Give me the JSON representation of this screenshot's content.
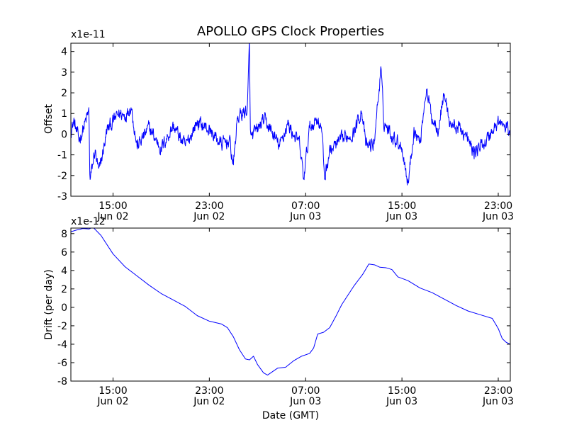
{
  "figure": {
    "title": "APOLLO GPS Clock Properties",
    "background": "#ffffff"
  },
  "chart_data": [
    {
      "type": "line",
      "title": "APOLLO GPS Clock Properties",
      "xlabel": "",
      "ylabel": "Offset",
      "y_scale_label": "x1e-11",
      "line_color": "#0000ff",
      "xlim": [
        "2014-06-02 11:30",
        "2014-06-04 00:00"
      ],
      "ylim": [
        -3,
        4.4
      ],
      "xticks": [
        {
          "time": "15:00",
          "date": "Jun 02"
        },
        {
          "time": "23:00",
          "date": "Jun 02"
        },
        {
          "time": "07:00",
          "date": "Jun 03"
        },
        {
          "time": "15:00",
          "date": "Jun 03"
        },
        {
          "time": "23:00",
          "date": "Jun 03"
        }
      ],
      "yticks": [
        "-3",
        "-2",
        "-1",
        "0",
        "1",
        "2",
        "3",
        "4"
      ],
      "grid": false,
      "series": [
        {
          "name": "",
          "noise_amplitude": 0.35,
          "points": [
            {
              "x": "2014-06-02 11:30",
              "y": 0.2
            },
            {
              "x": "2014-06-02 11:45",
              "y": 0.6
            },
            {
              "x": "2014-06-02 12:10",
              "y": -0.3
            },
            {
              "x": "2014-06-02 12:40",
              "y": 0.5
            },
            {
              "x": "2014-06-02 13:00",
              "y": 1.1
            },
            {
              "x": "2014-06-02 13:05",
              "y": -2.3
            },
            {
              "x": "2014-06-02 13:30",
              "y": -0.8
            },
            {
              "x": "2014-06-02 13:50",
              "y": -1.9
            },
            {
              "x": "2014-06-02 14:30",
              "y": 0.2
            },
            {
              "x": "2014-06-02 15:30",
              "y": 1.0
            },
            {
              "x": "2014-06-02 16:00",
              "y": 0.9
            },
            {
              "x": "2014-06-02 16:30",
              "y": 1.4
            },
            {
              "x": "2014-06-02 17:00",
              "y": -0.6
            },
            {
              "x": "2014-06-02 18:00",
              "y": 0.3
            },
            {
              "x": "2014-06-02 19:00",
              "y": -0.7
            },
            {
              "x": "2014-06-02 20:00",
              "y": 0.4
            },
            {
              "x": "2014-06-02 21:00",
              "y": -0.6
            },
            {
              "x": "2014-06-02 22:00",
              "y": 0.6
            },
            {
              "x": "2014-06-02 23:00",
              "y": 0.2
            },
            {
              "x": "2014-06-03 00:00",
              "y": -0.5
            },
            {
              "x": "2014-06-03 00:40",
              "y": -0.3
            },
            {
              "x": "2014-06-03 01:00",
              "y": -1.5
            },
            {
              "x": "2014-06-03 01:20",
              "y": 0.8
            },
            {
              "x": "2014-06-03 02:10",
              "y": 1.2
            },
            {
              "x": "2014-06-03 02:20",
              "y": 4.4
            },
            {
              "x": "2014-06-03 02:25",
              "y": -0.2
            },
            {
              "x": "2014-06-03 03:00",
              "y": 0.2
            },
            {
              "x": "2014-06-03 03:30",
              "y": 0.7
            },
            {
              "x": "2014-06-03 04:00",
              "y": 0.3
            },
            {
              "x": "2014-06-03 04:50",
              "y": -0.6
            },
            {
              "x": "2014-06-03 05:30",
              "y": 0.5
            },
            {
              "x": "2014-06-03 06:30",
              "y": -0.5
            },
            {
              "x": "2014-06-03 06:50",
              "y": -2.2
            },
            {
              "x": "2014-06-03 07:20",
              "y": 0.3
            },
            {
              "x": "2014-06-03 08:00",
              "y": 0.8
            },
            {
              "x": "2014-06-03 08:20",
              "y": 0.2
            },
            {
              "x": "2014-06-03 08:35",
              "y": -2.1
            },
            {
              "x": "2014-06-03 09:00",
              "y": -0.8
            },
            {
              "x": "2014-06-03 10:00",
              "y": -0.3
            },
            {
              "x": "2014-06-03 11:00",
              "y": 0.1
            },
            {
              "x": "2014-06-03 11:40",
              "y": 1.2
            },
            {
              "x": "2014-06-03 12:00",
              "y": -0.6
            },
            {
              "x": "2014-06-03 12:40",
              "y": -0.5
            },
            {
              "x": "2014-06-03 13:15",
              "y": 3.1
            },
            {
              "x": "2014-06-03 13:30",
              "y": 0.6
            },
            {
              "x": "2014-06-03 14:00",
              "y": 0.1
            },
            {
              "x": "2014-06-03 15:00",
              "y": -0.6
            },
            {
              "x": "2014-06-03 15:30",
              "y": -2.4
            },
            {
              "x": "2014-06-03 16:00",
              "y": 0.2
            },
            {
              "x": "2014-06-03 16:30",
              "y": -0.4
            },
            {
              "x": "2014-06-03 17:00",
              "y": 2.2
            },
            {
              "x": "2014-06-03 17:30",
              "y": 0.8
            },
            {
              "x": "2014-06-03 18:00",
              "y": 0.3
            },
            {
              "x": "2014-06-03 18:30",
              "y": 2.0
            },
            {
              "x": "2014-06-03 19:00",
              "y": 0.5
            },
            {
              "x": "2014-06-03 20:00",
              "y": 0.2
            },
            {
              "x": "2014-06-03 21:00",
              "y": -0.9
            },
            {
              "x": "2014-06-03 22:00",
              "y": -0.3
            },
            {
              "x": "2014-06-03 23:00",
              "y": 0.6
            },
            {
              "x": "2014-06-04 00:00",
              "y": 0.1
            }
          ]
        }
      ]
    },
    {
      "type": "line",
      "title": "",
      "xlabel": "Date (GMT)",
      "ylabel": "Drift (per day)",
      "y_scale_label": "x1e-12",
      "line_color": "#0000ff",
      "xlim": [
        "2014-06-02 11:30",
        "2014-06-04 00:00"
      ],
      "ylim": [
        -8,
        8.6
      ],
      "xticks": [
        {
          "time": "15:00",
          "date": "Jun 02"
        },
        {
          "time": "23:00",
          "date": "Jun 02"
        },
        {
          "time": "07:00",
          "date": "Jun 03"
        },
        {
          "time": "15:00",
          "date": "Jun 03"
        },
        {
          "time": "23:00",
          "date": "Jun 03"
        }
      ],
      "yticks": [
        "-8",
        "-6",
        "-4",
        "-2",
        "0",
        "2",
        "4",
        "6",
        "8"
      ],
      "grid": false,
      "series": [
        {
          "name": "",
          "points": [
            {
              "x": "2014-06-02 11:30",
              "y": 8.2
            },
            {
              "x": "2014-06-02 12:00",
              "y": 8.4
            },
            {
              "x": "2014-06-02 12:30",
              "y": 8.55
            },
            {
              "x": "2014-06-02 13:00",
              "y": 8.5
            },
            {
              "x": "2014-06-02 13:20",
              "y": 8.7
            },
            {
              "x": "2014-06-02 14:00",
              "y": 7.8
            },
            {
              "x": "2014-06-02 15:00",
              "y": 5.8
            },
            {
              "x": "2014-06-02 16:00",
              "y": 4.4
            },
            {
              "x": "2014-06-02 17:00",
              "y": 3.4
            },
            {
              "x": "2014-06-02 18:00",
              "y": 2.4
            },
            {
              "x": "2014-06-02 19:00",
              "y": 1.5
            },
            {
              "x": "2014-06-02 20:00",
              "y": 0.8
            },
            {
              "x": "2014-06-02 21:00",
              "y": 0.1
            },
            {
              "x": "2014-06-02 22:00",
              "y": -0.9
            },
            {
              "x": "2014-06-02 23:00",
              "y": -1.5
            },
            {
              "x": "2014-06-03 00:00",
              "y": -1.8
            },
            {
              "x": "2014-06-03 00:30",
              "y": -2.2
            },
            {
              "x": "2014-06-03 01:00",
              "y": -3.2
            },
            {
              "x": "2014-06-03 01:30",
              "y": -4.6
            },
            {
              "x": "2014-06-03 02:00",
              "y": -5.6
            },
            {
              "x": "2014-06-03 02:20",
              "y": -5.7
            },
            {
              "x": "2014-06-03 02:40",
              "y": -5.3
            },
            {
              "x": "2014-06-03 03:00",
              "y": -6.2
            },
            {
              "x": "2014-06-03 03:30",
              "y": -7.1
            },
            {
              "x": "2014-06-03 03:50",
              "y": -7.35
            },
            {
              "x": "2014-06-03 04:20",
              "y": -6.9
            },
            {
              "x": "2014-06-03 04:40",
              "y": -6.6
            },
            {
              "x": "2014-06-03 05:20",
              "y": -6.5
            },
            {
              "x": "2014-06-03 06:00",
              "y": -5.8
            },
            {
              "x": "2014-06-03 06:40",
              "y": -5.3
            },
            {
              "x": "2014-06-03 07:20",
              "y": -5.0
            },
            {
              "x": "2014-06-03 07:40",
              "y": -4.4
            },
            {
              "x": "2014-06-03 08:00",
              "y": -2.9
            },
            {
              "x": "2014-06-03 08:30",
              "y": -2.7
            },
            {
              "x": "2014-06-03 09:00",
              "y": -2.2
            },
            {
              "x": "2014-06-03 09:30",
              "y": -1.0
            },
            {
              "x": "2014-06-03 10:00",
              "y": 0.3
            },
            {
              "x": "2014-06-03 11:00",
              "y": 2.3
            },
            {
              "x": "2014-06-03 11:45",
              "y": 3.6
            },
            {
              "x": "2014-06-03 12:15",
              "y": 4.7
            },
            {
              "x": "2014-06-03 12:45",
              "y": 4.6
            },
            {
              "x": "2014-06-03 13:10",
              "y": 4.35
            },
            {
              "x": "2014-06-03 13:40",
              "y": 4.3
            },
            {
              "x": "2014-06-03 14:10",
              "y": 4.1
            },
            {
              "x": "2014-06-03 14:40",
              "y": 3.3
            },
            {
              "x": "2014-06-03 15:30",
              "y": 2.9
            },
            {
              "x": "2014-06-03 16:30",
              "y": 2.1
            },
            {
              "x": "2014-06-03 17:30",
              "y": 1.6
            },
            {
              "x": "2014-06-03 18:30",
              "y": 0.9
            },
            {
              "x": "2014-06-03 19:30",
              "y": 0.2
            },
            {
              "x": "2014-06-03 20:30",
              "y": -0.4
            },
            {
              "x": "2014-06-03 21:30",
              "y": -0.8
            },
            {
              "x": "2014-06-03 22:30",
              "y": -1.2
            },
            {
              "x": "2014-06-03 23:00",
              "y": -2.3
            },
            {
              "x": "2014-06-03 23:20",
              "y": -3.4
            },
            {
              "x": "2014-06-03 23:40",
              "y": -3.8
            },
            {
              "x": "2014-06-04 00:00",
              "y": -4.0
            }
          ]
        }
      ]
    }
  ]
}
